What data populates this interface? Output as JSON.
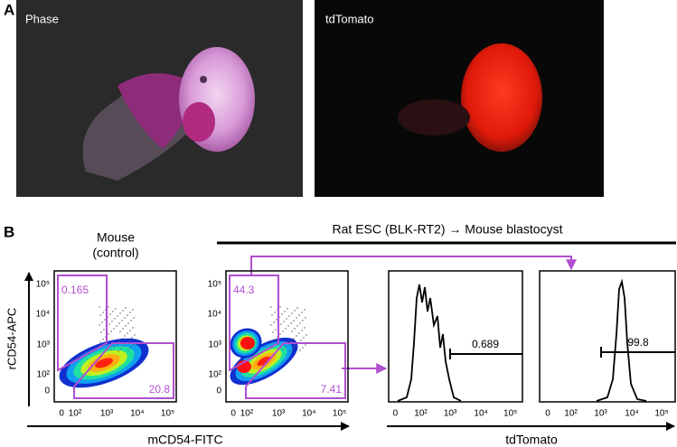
{
  "panel_a": {
    "label": "A",
    "images": [
      {
        "caption": "Phase"
      },
      {
        "caption": "tdTomato"
      }
    ]
  },
  "panel_b": {
    "label": "B",
    "header": "Rat ESC (BLK-RT2) → Mouse blastocyst",
    "control_title": [
      "Mouse",
      "(control)"
    ],
    "y_axis_label": "rCD54-APC",
    "x_axis_labels": [
      "mCD54-FITC",
      "tdTomato"
    ],
    "y_ticks": [
      "10⁵",
      "10⁴",
      "10³",
      "10²",
      "0"
    ],
    "x_ticks": [
      "0",
      "10²",
      "10³",
      "10⁴",
      "10⁵"
    ],
    "plots": [
      {
        "gates": [
          0.165,
          20.8
        ]
      },
      {
        "gates": [
          44.3,
          7.41
        ]
      },
      {
        "gates": [
          0.689
        ]
      },
      {
        "gates": [
          99.8
        ]
      }
    ]
  }
}
